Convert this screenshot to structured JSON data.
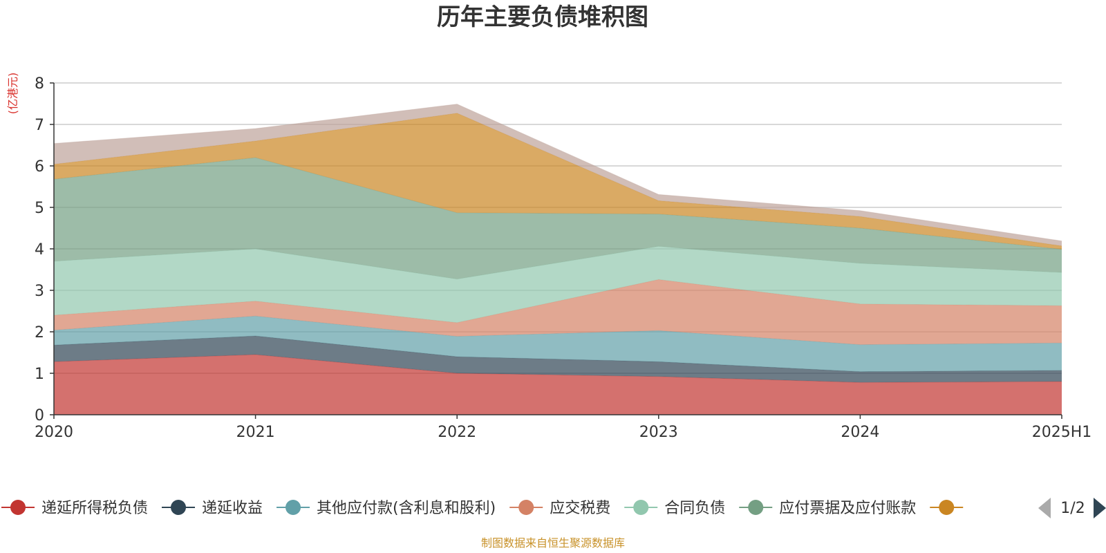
{
  "chart_data": {
    "type": "area",
    "stacked": true,
    "title": "历年主要负债堆积图",
    "unit": "(亿港元)",
    "x": [
      "2020",
      "2021",
      "2022",
      "2023",
      "2024",
      "2025H1"
    ],
    "y_ticks": [
      "0",
      "1",
      "2",
      "3",
      "4",
      "5",
      "6",
      "7",
      "8"
    ],
    "ylim": [
      0,
      8
    ],
    "grid": true,
    "legend_position": "bottom",
    "legend_page": "1/2",
    "series": [
      {
        "name": "递延所得税负债",
        "color": "#c23531",
        "legend": true,
        "values": [
          1.28,
          1.45,
          1.0,
          0.92,
          0.78,
          0.8
        ]
      },
      {
        "name": "递延收益",
        "color": "#2f4554",
        "legend": true,
        "values": [
          0.4,
          0.45,
          0.4,
          0.36,
          0.26,
          0.27
        ]
      },
      {
        "name": "其他应付款(含利息和股利)",
        "color": "#61a0a8",
        "legend": true,
        "values": [
          0.36,
          0.48,
          0.49,
          0.75,
          0.65,
          0.66
        ]
      },
      {
        "name": "应交税费",
        "color": "#d48265",
        "legend": true,
        "values": [
          0.36,
          0.36,
          0.33,
          1.23,
          0.98,
          0.9
        ]
      },
      {
        "name": "合同负债",
        "color": "#91c7ae",
        "legend": true,
        "values": [
          1.3,
          1.26,
          1.05,
          0.8,
          0.98,
          0.8
        ]
      },
      {
        "name": "应付票据及应付账款",
        "color": "#749f83",
        "legend": true,
        "values": [
          1.98,
          2.2,
          1.6,
          0.78,
          0.85,
          0.56
        ]
      },
      {
        "name": "",
        "color": "#ca8622",
        "legend": true,
        "values": [
          0.36,
          0.4,
          2.4,
          0.32,
          0.28,
          0.08
        ]
      },
      {
        "name": "",
        "color": "#bda29a",
        "legend": false,
        "values": [
          0.5,
          0.3,
          0.22,
          0.15,
          0.14,
          0.12
        ]
      }
    ]
  },
  "source_note": "制图数据来自恒生聚源数据库"
}
